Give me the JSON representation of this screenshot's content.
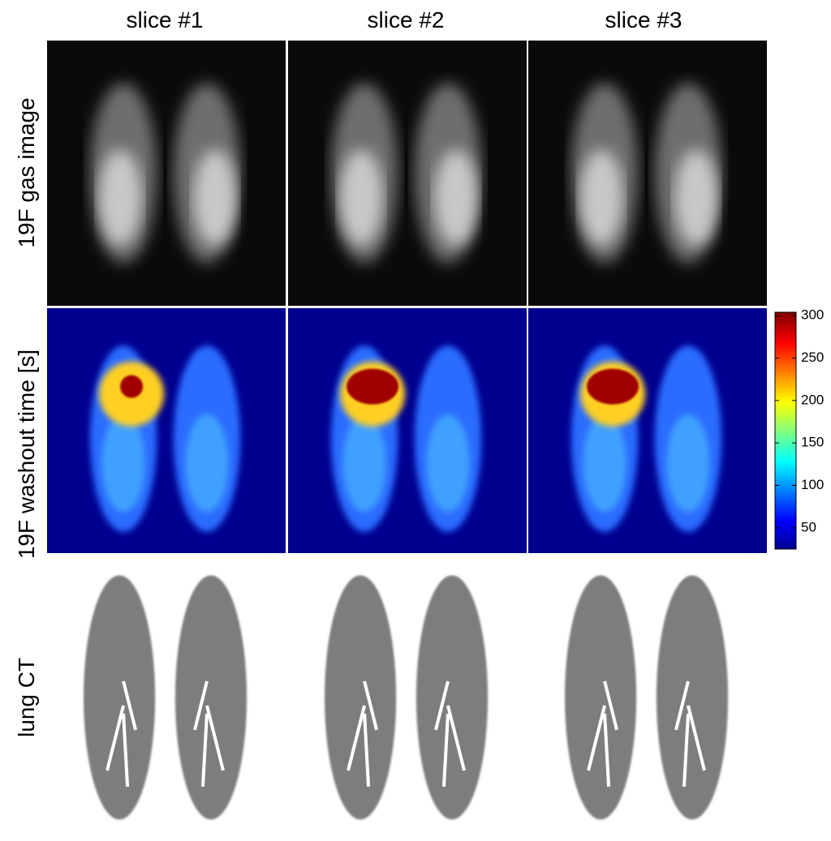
{
  "columns": [
    "slice #1",
    "slice #2",
    "slice #3"
  ],
  "rows": [
    "19F gas image",
    "19F washout time [s]",
    "lung CT"
  ],
  "colorbar": {
    "range": [
      25,
      304
    ],
    "ticks": [
      50,
      100,
      150,
      200,
      250,
      300
    ]
  }
}
